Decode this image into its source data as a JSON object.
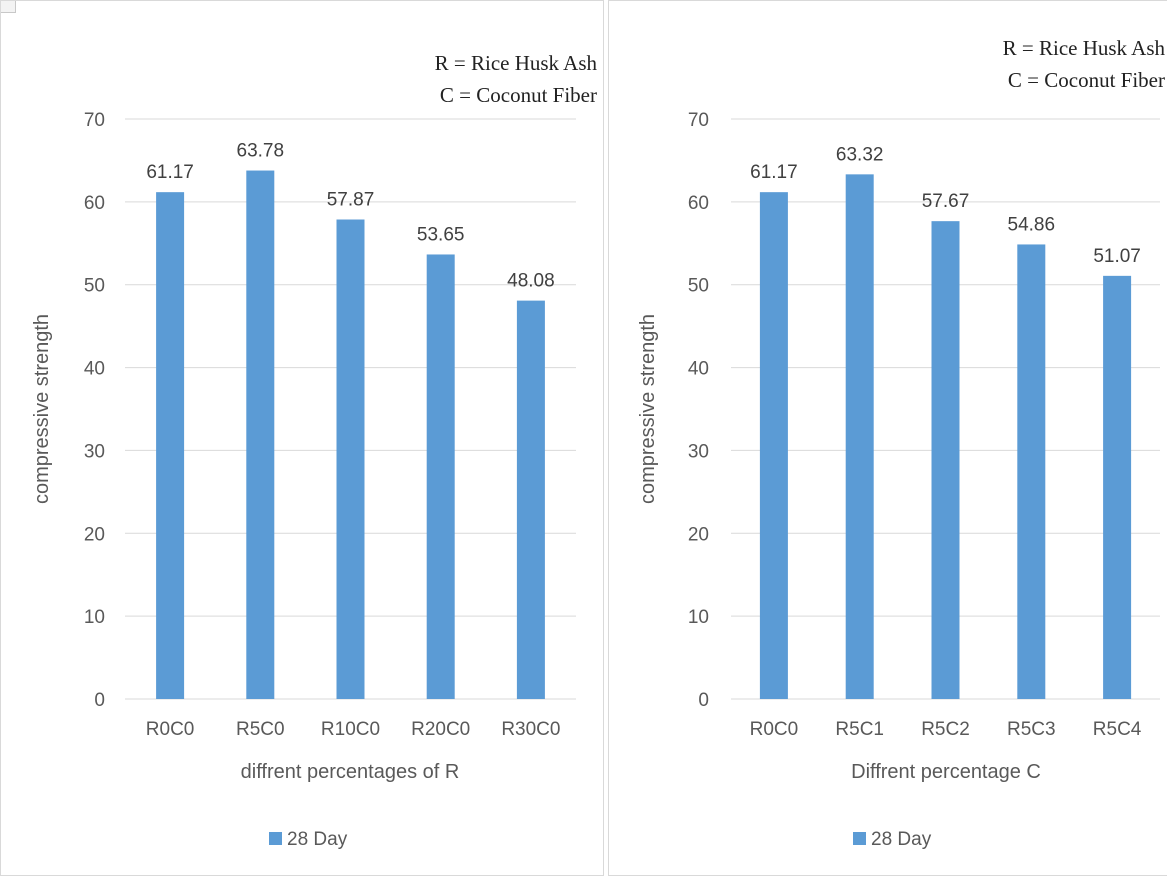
{
  "chart_data": [
    {
      "type": "bar",
      "notes": [
        "R = Rice Husk Ash",
        "C = Coconut Fiber"
      ],
      "categories": [
        "R0C0",
        "R5C0",
        "R10C0",
        "R20C0",
        "R30C0"
      ],
      "series": [
        {
          "name": "28 Day",
          "values": [
            61.17,
            63.78,
            57.87,
            53.65,
            48.08
          ],
          "labels": [
            "61.17",
            "63.78",
            "57.87",
            "53.65",
            "48.08"
          ]
        }
      ],
      "xlabel": "diffrent percentages of R",
      "ylabel": "compressive strength",
      "ylim": [
        0,
        70
      ],
      "yticks": [
        "0",
        "10",
        "20",
        "30",
        "40",
        "50",
        "60",
        "70"
      ],
      "grid": true,
      "legend": "bottom",
      "color": "#5b9bd5"
    },
    {
      "type": "bar",
      "notes": [
        "R = Rice Husk Ash",
        "C = Coconut Fiber"
      ],
      "categories": [
        "R0C0",
        "R5C1",
        "R5C2",
        "R5C3",
        "R5C4"
      ],
      "series": [
        {
          "name": "28 Day",
          "values": [
            61.17,
            63.32,
            57.67,
            54.86,
            51.07
          ],
          "labels": [
            "61.17",
            "63.32",
            "57.67",
            "54.86",
            "51.07"
          ]
        }
      ],
      "xlabel": "Diffrent percentage  C",
      "ylabel": "compressive strength",
      "ylim": [
        0,
        70
      ],
      "yticks": [
        "0",
        "10",
        "20",
        "30",
        "40",
        "50",
        "60",
        "70"
      ],
      "grid": true,
      "legend": "bottom",
      "color": "#5b9bd5"
    }
  ]
}
